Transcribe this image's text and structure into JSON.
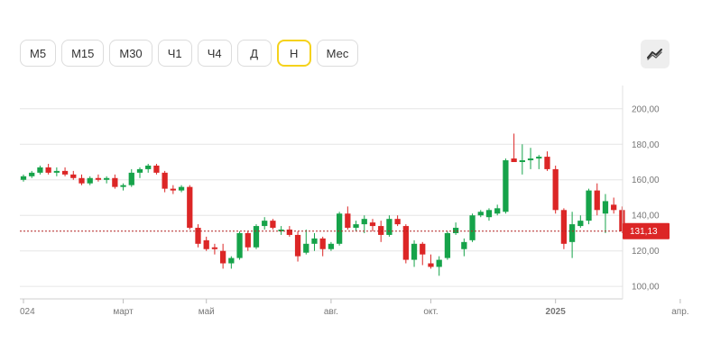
{
  "toolbar": {
    "timeframes": [
      "М5",
      "М15",
      "М30",
      "Ч1",
      "Ч4",
      "Д",
      "Н",
      "Мес"
    ],
    "active": "Н"
  },
  "chart_type_icon": "line-chart-icon",
  "colors": {
    "up": "#16a34a",
    "down": "#dc2626",
    "grid": "#e6e6e6",
    "price_line": "#b22222"
  },
  "chart_data": {
    "type": "candlestick",
    "title": "",
    "xlabel": "",
    "ylabel": "",
    "ylim": [
      93,
      208
    ],
    "y_ticks": [
      "100,00",
      "120,00",
      "140,00",
      "160,00",
      "180,00",
      "200,00"
    ],
    "y_tick_values": [
      100,
      120,
      140,
      160,
      180,
      200
    ],
    "x_tick_labels": [
      "024",
      "март",
      "май",
      "авг.",
      "окт.",
      "2025",
      "апр."
    ],
    "x_tick_index": [
      0,
      12,
      22,
      37,
      49,
      64,
      79
    ],
    "current_price": 131.13,
    "current_price_label": "131,13",
    "candles": [
      {
        "o": 160,
        "h": 163,
        "l": 159,
        "c": 162
      },
      {
        "o": 162,
        "h": 165,
        "l": 161,
        "c": 164
      },
      {
        "o": 164,
        "h": 168,
        "l": 163,
        "c": 167
      },
      {
        "o": 167,
        "h": 169,
        "l": 163,
        "c": 164
      },
      {
        "o": 164,
        "h": 167,
        "l": 162,
        "c": 165
      },
      {
        "o": 165,
        "h": 167,
        "l": 162,
        "c": 163
      },
      {
        "o": 163,
        "h": 165,
        "l": 160,
        "c": 161
      },
      {
        "o": 161,
        "h": 163,
        "l": 157,
        "c": 158
      },
      {
        "o": 158,
        "h": 162,
        "l": 157,
        "c": 161
      },
      {
        "o": 161,
        "h": 163,
        "l": 159,
        "c": 160
      },
      {
        "o": 160,
        "h": 162,
        "l": 158,
        "c": 161
      },
      {
        "o": 161,
        "h": 163,
        "l": 155,
        "c": 156
      },
      {
        "o": 156,
        "h": 158,
        "l": 154,
        "c": 157
      },
      {
        "o": 157,
        "h": 166,
        "l": 156,
        "c": 164
      },
      {
        "o": 164,
        "h": 167,
        "l": 161,
        "c": 166
      },
      {
        "o": 166,
        "h": 169,
        "l": 164,
        "c": 168
      },
      {
        "o": 168,
        "h": 169,
        "l": 163,
        "c": 164
      },
      {
        "o": 164,
        "h": 165,
        "l": 153,
        "c": 155
      },
      {
        "o": 155,
        "h": 157,
        "l": 152,
        "c": 154
      },
      {
        "o": 154,
        "h": 157,
        "l": 153,
        "c": 156
      },
      {
        "o": 156,
        "h": 157,
        "l": 132,
        "c": 133
      },
      {
        "o": 133,
        "h": 135,
        "l": 122,
        "c": 124
      },
      {
        "o": 126,
        "h": 128,
        "l": 120,
        "c": 121
      },
      {
        "o": 122,
        "h": 124,
        "l": 118,
        "c": 121
      },
      {
        "o": 120,
        "h": 124,
        "l": 110,
        "c": 113
      },
      {
        "o": 113,
        "h": 117,
        "l": 110,
        "c": 116
      },
      {
        "o": 116,
        "h": 131,
        "l": 115,
        "c": 130
      },
      {
        "o": 130,
        "h": 131,
        "l": 120,
        "c": 122
      },
      {
        "o": 122,
        "h": 135,
        "l": 121,
        "c": 134
      },
      {
        "o": 134,
        "h": 139,
        "l": 132,
        "c": 137
      },
      {
        "o": 137,
        "h": 138,
        "l": 132,
        "c": 133
      },
      {
        "o": 131,
        "h": 134,
        "l": 129,
        "c": 132
      },
      {
        "o": 132,
        "h": 134,
        "l": 128,
        "c": 129
      },
      {
        "o": 129,
        "h": 131,
        "l": 114,
        "c": 117
      },
      {
        "o": 119,
        "h": 132,
        "l": 118,
        "c": 124
      },
      {
        "o": 124,
        "h": 130,
        "l": 120,
        "c": 127
      },
      {
        "o": 127,
        "h": 128,
        "l": 117,
        "c": 121
      },
      {
        "o": 121,
        "h": 125,
        "l": 120,
        "c": 124
      },
      {
        "o": 124,
        "h": 142,
        "l": 123,
        "c": 141
      },
      {
        "o": 141,
        "h": 145,
        "l": 132,
        "c": 133
      },
      {
        "o": 133,
        "h": 137,
        "l": 131,
        "c": 135
      },
      {
        "o": 135,
        "h": 140,
        "l": 130,
        "c": 138
      },
      {
        "o": 136,
        "h": 138,
        "l": 131,
        "c": 134
      },
      {
        "o": 134,
        "h": 137,
        "l": 125,
        "c": 129
      },
      {
        "o": 129,
        "h": 140,
        "l": 128,
        "c": 138
      },
      {
        "o": 138,
        "h": 140,
        "l": 134,
        "c": 135
      },
      {
        "o": 134,
        "h": 135,
        "l": 113,
        "c": 115
      },
      {
        "o": 115,
        "h": 126,
        "l": 111,
        "c": 124
      },
      {
        "o": 124,
        "h": 125,
        "l": 112,
        "c": 118
      },
      {
        "o": 113,
        "h": 118,
        "l": 110,
        "c": 111
      },
      {
        "o": 111,
        "h": 117,
        "l": 106,
        "c": 115
      },
      {
        "o": 116,
        "h": 131,
        "l": 115,
        "c": 130
      },
      {
        "o": 130,
        "h": 136,
        "l": 129,
        "c": 133
      },
      {
        "o": 121,
        "h": 127,
        "l": 117,
        "c": 125
      },
      {
        "o": 126,
        "h": 141,
        "l": 125,
        "c": 140
      },
      {
        "o": 140,
        "h": 143,
        "l": 139,
        "c": 142
      },
      {
        "o": 139,
        "h": 144,
        "l": 137,
        "c": 143
      },
      {
        "o": 141,
        "h": 146,
        "l": 140,
        "c": 144
      },
      {
        "o": 142,
        "h": 172,
        "l": 141,
        "c": 171
      },
      {
        "o": 172,
        "h": 186,
        "l": 170,
        "c": 170
      },
      {
        "o": 170,
        "h": 180,
        "l": 163,
        "c": 171
      },
      {
        "o": 171,
        "h": 178,
        "l": 166,
        "c": 172
      },
      {
        "o": 172,
        "h": 174,
        "l": 166,
        "c": 173
      },
      {
        "o": 173,
        "h": 176,
        "l": 165,
        "c": 166
      },
      {
        "o": 166,
        "h": 168,
        "l": 141,
        "c": 143
      },
      {
        "o": 143,
        "h": 144,
        "l": 121,
        "c": 124
      },
      {
        "o": 125,
        "h": 142,
        "l": 116,
        "c": 135
      },
      {
        "o": 134,
        "h": 140,
        "l": 133,
        "c": 137
      },
      {
        "o": 137,
        "h": 155,
        "l": 135,
        "c": 154
      },
      {
        "o": 154,
        "h": 158,
        "l": 140,
        "c": 143
      },
      {
        "o": 141,
        "h": 152,
        "l": 130,
        "c": 148
      },
      {
        "o": 146,
        "h": 150,
        "l": 141,
        "c": 143
      },
      {
        "o": 143,
        "h": 145,
        "l": 130,
        "c": 131
      }
    ]
  }
}
